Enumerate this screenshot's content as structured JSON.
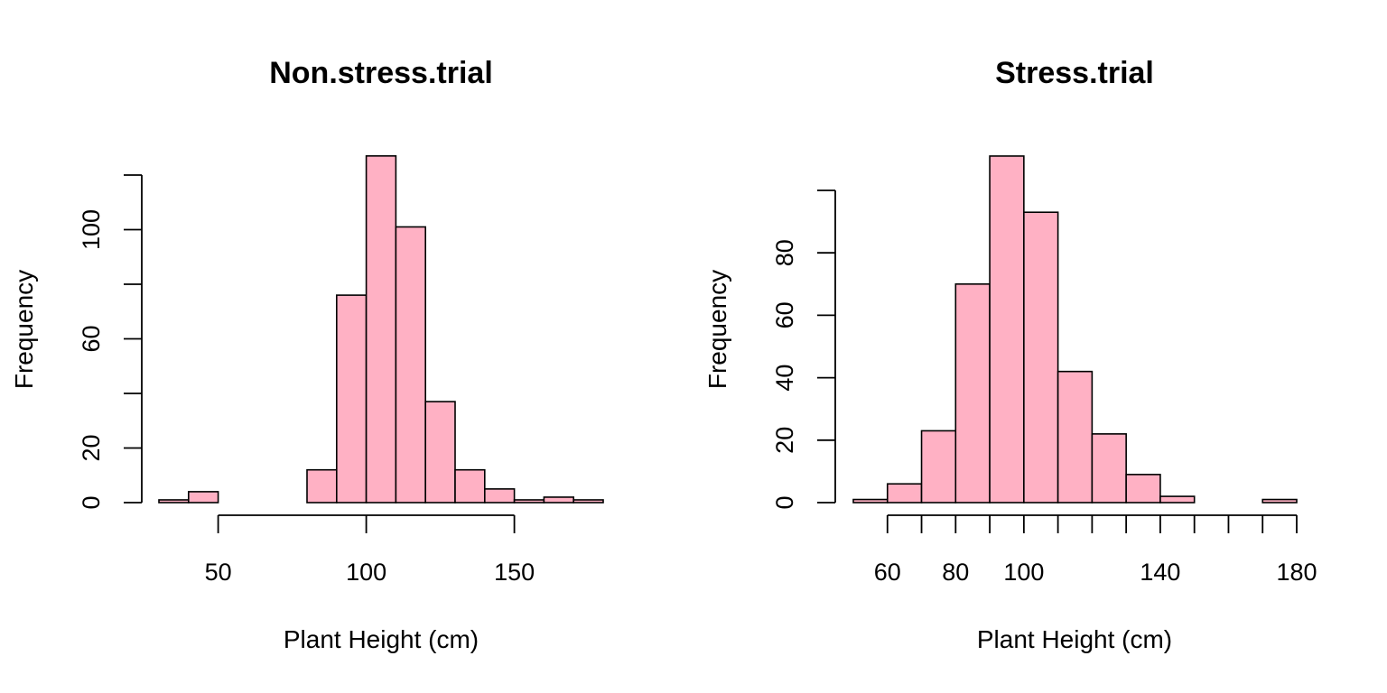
{
  "colors": {
    "bar_fill": "#FFB1C4",
    "bar_stroke": "#000000",
    "axis": "#000000",
    "background": "#FFFFFF"
  },
  "chart_data": [
    {
      "type": "bar",
      "subtype": "histogram",
      "title": "Non.stress.trial",
      "xlabel": "Plant Height (cm)",
      "ylabel": "Frequency",
      "bin_edges": [
        30,
        40,
        50,
        60,
        70,
        80,
        90,
        100,
        110,
        120,
        130,
        140,
        150,
        160,
        170,
        180
      ],
      "values": [
        1,
        4,
        0,
        0,
        0,
        12,
        76,
        127,
        101,
        37,
        12,
        5,
        1,
        2,
        1
      ],
      "xlim": [
        30,
        180
      ],
      "ylim": [
        0,
        120
      ],
      "x_ticks": [
        50,
        100,
        150
      ],
      "x_minor_ticks": [
        50,
        100,
        150
      ],
      "y_ticks": [
        0,
        20,
        40,
        60,
        80,
        100,
        120
      ],
      "y_tick_labels": [
        "0",
        "20",
        "",
        "60",
        "",
        "100",
        ""
      ],
      "x_tick_labels": [
        "50",
        "100",
        "150"
      ],
      "grid": false
    },
    {
      "type": "bar",
      "subtype": "histogram",
      "title": "Stress.trial",
      "xlabel": "Plant Height (cm)",
      "ylabel": "Frequency",
      "bin_edges": [
        50,
        60,
        70,
        80,
        90,
        100,
        110,
        120,
        130,
        140,
        150,
        160,
        170,
        180
      ],
      "values": [
        1,
        6,
        23,
        70,
        111,
        93,
        42,
        22,
        9,
        2,
        0,
        0,
        1
      ],
      "xlim": [
        50,
        180
      ],
      "ylim": [
        0,
        100
      ],
      "x_ticks": [
        60,
        70,
        80,
        90,
        100,
        110,
        120,
        130,
        140,
        150,
        160,
        170,
        180
      ],
      "x_tick_labels": [
        "60",
        "",
        "80",
        "",
        "100",
        "",
        "",
        "",
        "140",
        "",
        "",
        "",
        "180"
      ],
      "y_ticks": [
        0,
        20,
        40,
        60,
        80,
        100
      ],
      "y_tick_labels": [
        "0",
        "20",
        "40",
        "60",
        "80",
        ""
      ],
      "grid": false
    }
  ]
}
